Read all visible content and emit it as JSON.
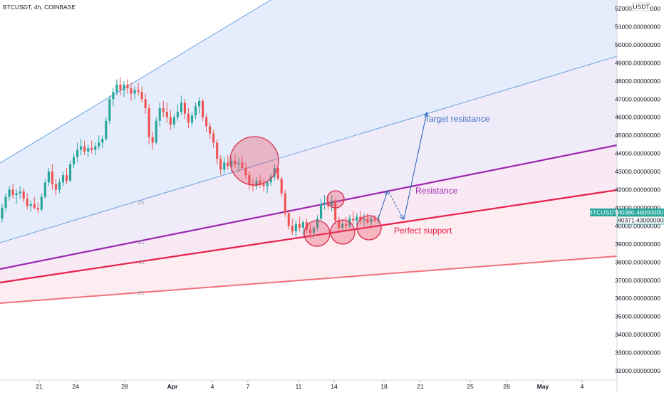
{
  "header": {
    "symbol_info": "BTCUSDT, 4h, COINBASE"
  },
  "price_axis": {
    "currency": "USDT",
    "ticks": [
      "52000.00000000",
      "51000.00000000",
      "50000.00000000",
      "49000.00000000",
      "48000.00000000",
      "47000.00000000",
      "46000.00000000",
      "45000.00000000",
      "44000.00000000",
      "43000.00000000",
      "42000.00000000",
      "41000.00000000",
      "40000.00000000",
      "39000.00000000",
      "38000.00000000",
      "37000.00000000",
      "36000.00000000",
      "35000.00000000",
      "34000.00000000",
      "33000.00000000",
      "32000.00000000"
    ],
    "symbol_label": "BTCUSDT",
    "last_price_label": "40380.46000000",
    "secondary_price_label": "40371.43000000"
  },
  "time_axis": {
    "ticks": [
      "21",
      "24",
      "28",
      "Apr",
      "4",
      "7",
      "11",
      "14",
      "18",
      "21",
      "25",
      "28",
      "May",
      "4"
    ]
  },
  "fib_fan_labels": [
    "2/1",
    "3/1",
    "4/1",
    "8/1"
  ],
  "annotations": {
    "target_resistance": "Target resistance",
    "resistance": "Resistance",
    "perfect_support": "Perfect support"
  },
  "colors": {
    "resistance_line": "#9c27b0",
    "support_line": "#e91e4a",
    "lower_line": "#f07178",
    "target_line": "#4a90d9",
    "candle_up": "#26a69a",
    "candle_down": "#ef5350",
    "arrow": "#1e5fb4",
    "last_price_bg": "#26a69a",
    "secondary_price_bg": "#ffffff"
  },
  "chart_data": {
    "type": "candlestick",
    "symbol": "BTCUSDT",
    "interval": "4h",
    "exchange": "COINBASE",
    "ylim": [
      31600,
      52500
    ],
    "x_ticks": [
      "21",
      "24",
      "28",
      "Apr",
      "4",
      "7",
      "11",
      "14",
      "18",
      "21",
      "25",
      "28",
      "May",
      "4"
    ],
    "candles": [
      {
        "o": 40400,
        "h": 41200,
        "l": 40200,
        "c": 41000
      },
      {
        "o": 41000,
        "h": 41800,
        "l": 40800,
        "c": 41600
      },
      {
        "o": 41600,
        "h": 42200,
        "l": 41400,
        "c": 42000
      },
      {
        "o": 42000,
        "h": 42300,
        "l": 41500,
        "c": 41700
      },
      {
        "o": 41700,
        "h": 42000,
        "l": 41200,
        "c": 41800
      },
      {
        "o": 41800,
        "h": 42200,
        "l": 41500,
        "c": 41900
      },
      {
        "o": 41900,
        "h": 42100,
        "l": 41300,
        "c": 41500
      },
      {
        "o": 41500,
        "h": 41800,
        "l": 40900,
        "c": 41100
      },
      {
        "o": 41100,
        "h": 41400,
        "l": 40800,
        "c": 41200
      },
      {
        "o": 41200,
        "h": 41600,
        "l": 40900,
        "c": 41000
      },
      {
        "o": 41000,
        "h": 41300,
        "l": 40700,
        "c": 40900
      },
      {
        "o": 40900,
        "h": 41800,
        "l": 40800,
        "c": 41600
      },
      {
        "o": 41600,
        "h": 42600,
        "l": 41500,
        "c": 42400
      },
      {
        "o": 42400,
        "h": 43200,
        "l": 42200,
        "c": 43000
      },
      {
        "o": 43000,
        "h": 43400,
        "l": 42000,
        "c": 42300
      },
      {
        "o": 42300,
        "h": 42600,
        "l": 41700,
        "c": 42000
      },
      {
        "o": 42000,
        "h": 42600,
        "l": 41800,
        "c": 42400
      },
      {
        "o": 42400,
        "h": 43000,
        "l": 42200,
        "c": 42800
      },
      {
        "o": 42800,
        "h": 43200,
        "l": 42300,
        "c": 42500
      },
      {
        "o": 42500,
        "h": 43600,
        "l": 42400,
        "c": 43400
      },
      {
        "o": 43400,
        "h": 44000,
        "l": 43200,
        "c": 43800
      },
      {
        "o": 43800,
        "h": 44600,
        "l": 43500,
        "c": 44200
      },
      {
        "o": 44200,
        "h": 44800,
        "l": 43900,
        "c": 44400
      },
      {
        "o": 44400,
        "h": 44700,
        "l": 43900,
        "c": 44100
      },
      {
        "o": 44100,
        "h": 44500,
        "l": 43800,
        "c": 44300
      },
      {
        "o": 44300,
        "h": 44700,
        "l": 44000,
        "c": 44200
      },
      {
        "o": 44200,
        "h": 44600,
        "l": 43900,
        "c": 44400
      },
      {
        "o": 44400,
        "h": 45000,
        "l": 44200,
        "c": 44600
      },
      {
        "o": 44600,
        "h": 45000,
        "l": 44300,
        "c": 44800
      },
      {
        "o": 44800,
        "h": 46000,
        "l": 44700,
        "c": 45800
      },
      {
        "o": 45800,
        "h": 47200,
        "l": 45600,
        "c": 47000
      },
      {
        "o": 47000,
        "h": 47600,
        "l": 46600,
        "c": 47400
      },
      {
        "o": 47400,
        "h": 48100,
        "l": 47200,
        "c": 47800
      },
      {
        "o": 47800,
        "h": 48200,
        "l": 47200,
        "c": 47500
      },
      {
        "o": 47500,
        "h": 48000,
        "l": 47100,
        "c": 47800
      },
      {
        "o": 47800,
        "h": 48100,
        "l": 47300,
        "c": 47600
      },
      {
        "o": 47600,
        "h": 47900,
        "l": 46900,
        "c": 47300
      },
      {
        "o": 47300,
        "h": 47700,
        "l": 47000,
        "c": 47500
      },
      {
        "o": 47500,
        "h": 47900,
        "l": 47200,
        "c": 47400
      },
      {
        "o": 47400,
        "h": 47700,
        "l": 46800,
        "c": 47000
      },
      {
        "o": 47000,
        "h": 47300,
        "l": 46200,
        "c": 46500
      },
      {
        "o": 46500,
        "h": 46700,
        "l": 44500,
        "c": 44900
      },
      {
        "o": 44900,
        "h": 45200,
        "l": 44200,
        "c": 44600
      },
      {
        "o": 44600,
        "h": 46000,
        "l": 44500,
        "c": 45800
      },
      {
        "o": 45800,
        "h": 46800,
        "l": 45500,
        "c": 46500
      },
      {
        "o": 46500,
        "h": 46900,
        "l": 46000,
        "c": 46300
      },
      {
        "o": 46300,
        "h": 46800,
        "l": 45700,
        "c": 46000
      },
      {
        "o": 46000,
        "h": 46400,
        "l": 45300,
        "c": 45600
      },
      {
        "o": 45600,
        "h": 46200,
        "l": 45400,
        "c": 46000
      },
      {
        "o": 46000,
        "h": 46700,
        "l": 45800,
        "c": 46300
      },
      {
        "o": 46300,
        "h": 47200,
        "l": 46100,
        "c": 46800
      },
      {
        "o": 46800,
        "h": 47000,
        "l": 45900,
        "c": 46200
      },
      {
        "o": 46200,
        "h": 46500,
        "l": 45400,
        "c": 45700
      },
      {
        "o": 45700,
        "h": 46300,
        "l": 45500,
        "c": 46100
      },
      {
        "o": 46100,
        "h": 46800,
        "l": 45900,
        "c": 46600
      },
      {
        "o": 46600,
        "h": 47100,
        "l": 46200,
        "c": 46900
      },
      {
        "o": 46900,
        "h": 47000,
        "l": 45800,
        "c": 46000
      },
      {
        "o": 46000,
        "h": 46200,
        "l": 45200,
        "c": 45500
      },
      {
        "o": 45500,
        "h": 45700,
        "l": 44800,
        "c": 45100
      },
      {
        "o": 45100,
        "h": 45300,
        "l": 44300,
        "c": 44600
      },
      {
        "o": 44600,
        "h": 44800,
        "l": 43400,
        "c": 43700
      },
      {
        "o": 43700,
        "h": 43900,
        "l": 42800,
        "c": 43100
      },
      {
        "o": 43100,
        "h": 43800,
        "l": 42900,
        "c": 43500
      },
      {
        "o": 43500,
        "h": 43900,
        "l": 43100,
        "c": 43300
      },
      {
        "o": 43300,
        "h": 43800,
        "l": 43000,
        "c": 43600
      },
      {
        "o": 43600,
        "h": 44000,
        "l": 43200,
        "c": 43400
      },
      {
        "o": 43400,
        "h": 43800,
        "l": 43000,
        "c": 43500
      },
      {
        "o": 43500,
        "h": 43900,
        "l": 43100,
        "c": 43200
      },
      {
        "o": 43200,
        "h": 43500,
        "l": 42600,
        "c": 42800
      },
      {
        "o": 42800,
        "h": 43000,
        "l": 42000,
        "c": 42300
      },
      {
        "o": 42300,
        "h": 42600,
        "l": 41900,
        "c": 42200
      },
      {
        "o": 42200,
        "h": 42700,
        "l": 42000,
        "c": 42500
      },
      {
        "o": 42500,
        "h": 42800,
        "l": 42100,
        "c": 42300
      },
      {
        "o": 42300,
        "h": 42600,
        "l": 41900,
        "c": 42200
      },
      {
        "o": 42200,
        "h": 42500,
        "l": 41800,
        "c": 42400
      },
      {
        "o": 42400,
        "h": 42900,
        "l": 42200,
        "c": 42700
      },
      {
        "o": 42700,
        "h": 43400,
        "l": 42500,
        "c": 43200
      },
      {
        "o": 43200,
        "h": 43300,
        "l": 42500,
        "c": 42600
      },
      {
        "o": 42600,
        "h": 42700,
        "l": 41600,
        "c": 41800
      },
      {
        "o": 41800,
        "h": 42000,
        "l": 40500,
        "c": 40700
      },
      {
        "o": 40700,
        "h": 40900,
        "l": 39800,
        "c": 40000
      },
      {
        "o": 40000,
        "h": 40400,
        "l": 39500,
        "c": 39700
      },
      {
        "o": 39700,
        "h": 40300,
        "l": 39400,
        "c": 40100
      },
      {
        "o": 40100,
        "h": 40500,
        "l": 39700,
        "c": 39900
      },
      {
        "o": 39900,
        "h": 40300,
        "l": 39500,
        "c": 40200
      },
      {
        "o": 40200,
        "h": 40400,
        "l": 39600,
        "c": 39800
      },
      {
        "o": 39800,
        "h": 40100,
        "l": 39300,
        "c": 39600
      },
      {
        "o": 39600,
        "h": 40000,
        "l": 39300,
        "c": 39900
      },
      {
        "o": 39900,
        "h": 40600,
        "l": 39700,
        "c": 40400
      },
      {
        "o": 40400,
        "h": 41500,
        "l": 40300,
        "c": 41200
      },
      {
        "o": 41200,
        "h": 41700,
        "l": 40900,
        "c": 41300
      },
      {
        "o": 41300,
        "h": 41600,
        "l": 40900,
        "c": 41100
      },
      {
        "o": 41100,
        "h": 41700,
        "l": 40800,
        "c": 41400
      },
      {
        "o": 41400,
        "h": 41500,
        "l": 40100,
        "c": 40300
      },
      {
        "o": 40300,
        "h": 40500,
        "l": 39700,
        "c": 39900
      },
      {
        "o": 39900,
        "h": 40300,
        "l": 39700,
        "c": 40100
      },
      {
        "o": 40100,
        "h": 40500,
        "l": 39800,
        "c": 40000
      },
      {
        "o": 40000,
        "h": 40600,
        "l": 39900,
        "c": 40400
      },
      {
        "o": 40400,
        "h": 40800,
        "l": 40100,
        "c": 40300
      },
      {
        "o": 40300,
        "h": 40700,
        "l": 40000,
        "c": 40500
      },
      {
        "o": 40500,
        "h": 40800,
        "l": 40100,
        "c": 40300
      },
      {
        "o": 40300,
        "h": 40700,
        "l": 40000,
        "c": 40400
      },
      {
        "o": 40400,
        "h": 40700,
        "l": 40100,
        "c": 40200
      },
      {
        "o": 40200,
        "h": 40600,
        "l": 40000,
        "c": 40400
      },
      {
        "o": 40400,
        "h": 40600,
        "l": 40200,
        "c": 40300
      },
      {
        "o": 40300,
        "h": 40600,
        "l": 40100,
        "c": 40380
      }
    ],
    "trend_lines": [
      {
        "name": "Target resistance"
      },
      {
        "name": "Resistance"
      },
      {
        "name": "Perfect support"
      }
    ],
    "last_price": 40380.46,
    "grid": false
  }
}
